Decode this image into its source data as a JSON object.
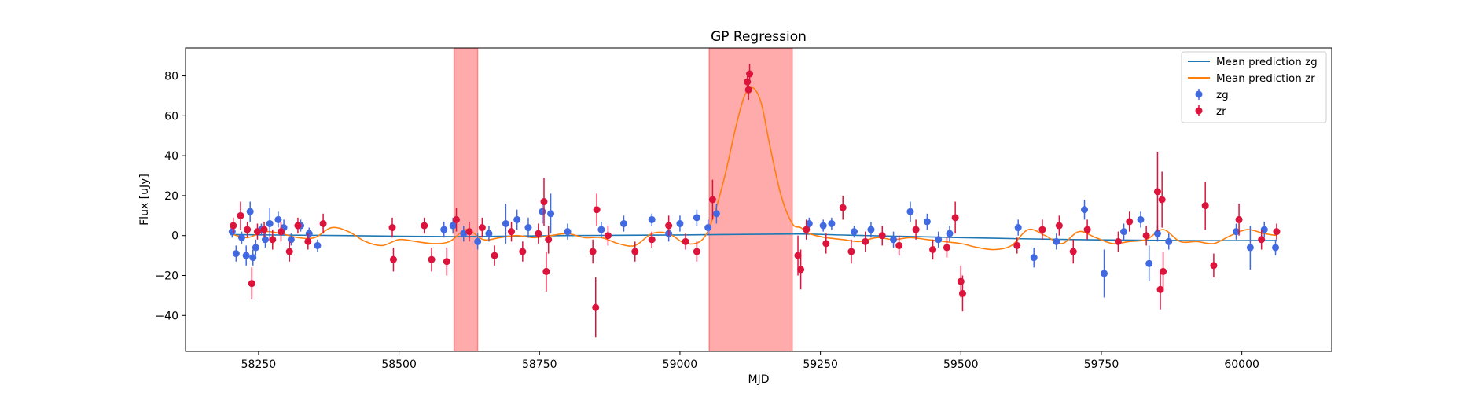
{
  "chart_data": {
    "type": "scatter",
    "title": "GP Regression",
    "xlabel": "MJD",
    "ylabel": "Flux [uJy]",
    "xlim": [
      58120,
      60160
    ],
    "ylim": [
      -58,
      94
    ],
    "xticks": [
      58250,
      58500,
      58750,
      59000,
      59250,
      59500,
      59750,
      60000
    ],
    "yticks": [
      -40,
      -20,
      0,
      20,
      40,
      60,
      80
    ],
    "grid": false,
    "legend_position": "top-right",
    "legend": [
      "Mean prediction zg",
      "Mean prediction zr",
      "zg",
      "zr"
    ],
    "colors": {
      "zg_line": "#1f77b4",
      "zr_line": "#ff7f0e",
      "zg_points": "#4169e1",
      "zr_points": "#dc143c",
      "highlight": "#ff0000"
    },
    "highlight_regions": [
      {
        "x0": 58598,
        "x1": 58640
      },
      {
        "x0": 59052,
        "x1": 59200
      }
    ],
    "series": [
      {
        "name": "Mean prediction zg",
        "kind": "line",
        "x": [
          58200,
          58400,
          58600,
          58800,
          59000,
          59200,
          59300,
          59500,
          59700,
          59900,
          60063
        ],
        "y": [
          0.5,
          0,
          -0.5,
          0,
          0.3,
          0.8,
          0.2,
          -1,
          -2,
          -2.5,
          -2.5
        ]
      },
      {
        "name": "Mean prediction zr",
        "kind": "line",
        "x": [
          58200,
          58230,
          58260,
          58290,
          58320,
          58350,
          58380,
          58410,
          58440,
          58470,
          58500,
          58530,
          58560,
          58590,
          58620,
          58650,
          58680,
          58710,
          58740,
          58770,
          58800,
          58830,
          58860,
          58890,
          58920,
          58950,
          58980,
          59010,
          59040,
          59060,
          59080,
          59100,
          59115,
          59130,
          59145,
          59160,
          59180,
          59200,
          59215,
          59230,
          59260,
          59290,
          59320,
          59350,
          59380,
          59410,
          59440,
          59470,
          59500,
          59530,
          59560,
          59590,
          59620,
          59650,
          59680,
          59710,
          59740,
          59770,
          59800,
          59830,
          59860,
          59890,
          59920,
          59950,
          59980,
          60010,
          60040,
          60063
        ],
        "y": [
          1,
          -1,
          2,
          1,
          -1,
          -1,
          4,
          2,
          -3,
          -5,
          -2,
          -3,
          -4,
          -3,
          3,
          -2,
          -1,
          0,
          -1,
          0,
          1,
          -1,
          -1,
          -4,
          -5,
          1,
          1,
          -4,
          -2,
          10,
          30,
          55,
          70,
          74,
          66,
          45,
          20,
          6,
          4,
          1,
          -1,
          -2,
          -3,
          -1,
          -2,
          -1,
          -2,
          -3,
          -4,
          -6,
          -7,
          -5,
          3,
          0,
          -4,
          2,
          -1,
          -4,
          -3,
          -2,
          3,
          -3,
          -3,
          -4,
          0,
          3,
          1,
          0
        ]
      },
      {
        "name": "zg",
        "kind": "errorbar",
        "points": [
          [
            58203,
            2,
            3
          ],
          [
            58210,
            -9,
            4
          ],
          [
            58220,
            -1,
            3
          ],
          [
            58228,
            -10,
            5
          ],
          [
            58235,
            12,
            5
          ],
          [
            58240,
            -11,
            4
          ],
          [
            58245,
            -6,
            4
          ],
          [
            58255,
            3,
            3
          ],
          [
            58262,
            -2,
            4
          ],
          [
            58270,
            6,
            8
          ],
          [
            58285,
            8,
            4
          ],
          [
            58295,
            4,
            4
          ],
          [
            58308,
            -2,
            3
          ],
          [
            58325,
            5,
            3
          ],
          [
            58340,
            1,
            3
          ],
          [
            58355,
            -5,
            3
          ],
          [
            58580,
            3,
            4
          ],
          [
            58596,
            5,
            4
          ],
          [
            58615,
            1,
            4
          ],
          [
            58640,
            -3,
            4
          ],
          [
            58660,
            1,
            4
          ],
          [
            58690,
            6,
            10
          ],
          [
            58710,
            8,
            5
          ],
          [
            58730,
            4,
            5
          ],
          [
            58755,
            12,
            6
          ],
          [
            58770,
            11,
            10
          ],
          [
            58800,
            2,
            4
          ],
          [
            58860,
            3,
            4
          ],
          [
            58900,
            6,
            4
          ],
          [
            58950,
            8,
            3
          ],
          [
            58980,
            1,
            4
          ],
          [
            59000,
            6,
            4
          ],
          [
            59030,
            9,
            4
          ],
          [
            59050,
            4,
            4
          ],
          [
            59065,
            11,
            5
          ],
          [
            59230,
            6,
            3
          ],
          [
            59255,
            5,
            3
          ],
          [
            59270,
            6,
            3
          ],
          [
            59310,
            2,
            3
          ],
          [
            59340,
            3,
            4
          ],
          [
            59380,
            -2,
            4
          ],
          [
            59410,
            12,
            5
          ],
          [
            59440,
            7,
            4
          ],
          [
            59460,
            -2,
            4
          ],
          [
            59480,
            1,
            4
          ],
          [
            59602,
            4,
            4
          ],
          [
            59630,
            -11,
            5
          ],
          [
            59670,
            -3,
            4
          ],
          [
            59720,
            13,
            5
          ],
          [
            59755,
            -19,
            12
          ],
          [
            59790,
            2,
            4
          ],
          [
            59820,
            8,
            4
          ],
          [
            59835,
            -14,
            9
          ],
          [
            59850,
            1,
            4
          ],
          [
            59870,
            -3,
            4
          ],
          [
            59990,
            2,
            4
          ],
          [
            60015,
            -6,
            11
          ],
          [
            60040,
            3,
            4
          ],
          [
            60060,
            -6,
            4
          ]
        ]
      },
      {
        "name": "zr",
        "kind": "errorbar",
        "points": [
          [
            58205,
            5,
            4
          ],
          [
            58218,
            10,
            7
          ],
          [
            58230,
            3,
            4
          ],
          [
            58238,
            -24,
            8
          ],
          [
            58248,
            2,
            4
          ],
          [
            58260,
            3,
            4
          ],
          [
            58275,
            -2,
            5
          ],
          [
            58290,
            2,
            5
          ],
          [
            58305,
            -8,
            5
          ],
          [
            58320,
            5,
            4
          ],
          [
            58338,
            -3,
            4
          ],
          [
            58365,
            6,
            5
          ],
          [
            58488,
            4,
            5
          ],
          [
            58490,
            -12,
            6
          ],
          [
            58545,
            5,
            4
          ],
          [
            58558,
            -12,
            6
          ],
          [
            58585,
            -13,
            7
          ],
          [
            58602,
            8,
            6
          ],
          [
            58625,
            2,
            5
          ],
          [
            58648,
            4,
            5
          ],
          [
            58670,
            -10,
            5
          ],
          [
            58700,
            2,
            5
          ],
          [
            58720,
            -8,
            5
          ],
          [
            58748,
            1,
            5
          ],
          [
            58758,
            17,
            12
          ],
          [
            58762,
            -18,
            10
          ],
          [
            58766,
            -2,
            7
          ],
          [
            58845,
            -8,
            6
          ],
          [
            58850,
            -36,
            15
          ],
          [
            58852,
            13,
            8
          ],
          [
            58872,
            0,
            5
          ],
          [
            58920,
            -8,
            5
          ],
          [
            58950,
            -2,
            4
          ],
          [
            58980,
            5,
            5
          ],
          [
            59010,
            -3,
            4
          ],
          [
            59030,
            -8,
            5
          ],
          [
            59058,
            18,
            10
          ],
          [
            59120,
            77,
            5
          ],
          [
            59122,
            73,
            5
          ],
          [
            59124,
            81,
            5
          ],
          [
            59210,
            -10,
            10
          ],
          [
            59215,
            -17,
            10
          ],
          [
            59225,
            3,
            5
          ],
          [
            59260,
            -4,
            5
          ],
          [
            59290,
            14,
            6
          ],
          [
            59305,
            -8,
            6
          ],
          [
            59330,
            -3,
            5
          ],
          [
            59360,
            0,
            5
          ],
          [
            59390,
            -5,
            5
          ],
          [
            59420,
            3,
            5
          ],
          [
            59450,
            -7,
            5
          ],
          [
            59475,
            -6,
            5
          ],
          [
            59490,
            9,
            8
          ],
          [
            59500,
            -23,
            8
          ],
          [
            59503,
            -29,
            9
          ],
          [
            59600,
            -5,
            4
          ],
          [
            59645,
            3,
            5
          ],
          [
            59675,
            5,
            5
          ],
          [
            59700,
            -8,
            6
          ],
          [
            59725,
            3,
            5
          ],
          [
            59780,
            -3,
            5
          ],
          [
            59800,
            7,
            5
          ],
          [
            59830,
            0,
            5
          ],
          [
            59850,
            22,
            20
          ],
          [
            59855,
            -27,
            10
          ],
          [
            59858,
            18,
            14
          ],
          [
            59860,
            -18,
            10
          ],
          [
            59935,
            15,
            12
          ],
          [
            59950,
            -15,
            6
          ],
          [
            59995,
            8,
            8
          ],
          [
            60035,
            -2,
            5
          ],
          [
            60062,
            2,
            4
          ]
        ]
      }
    ]
  }
}
